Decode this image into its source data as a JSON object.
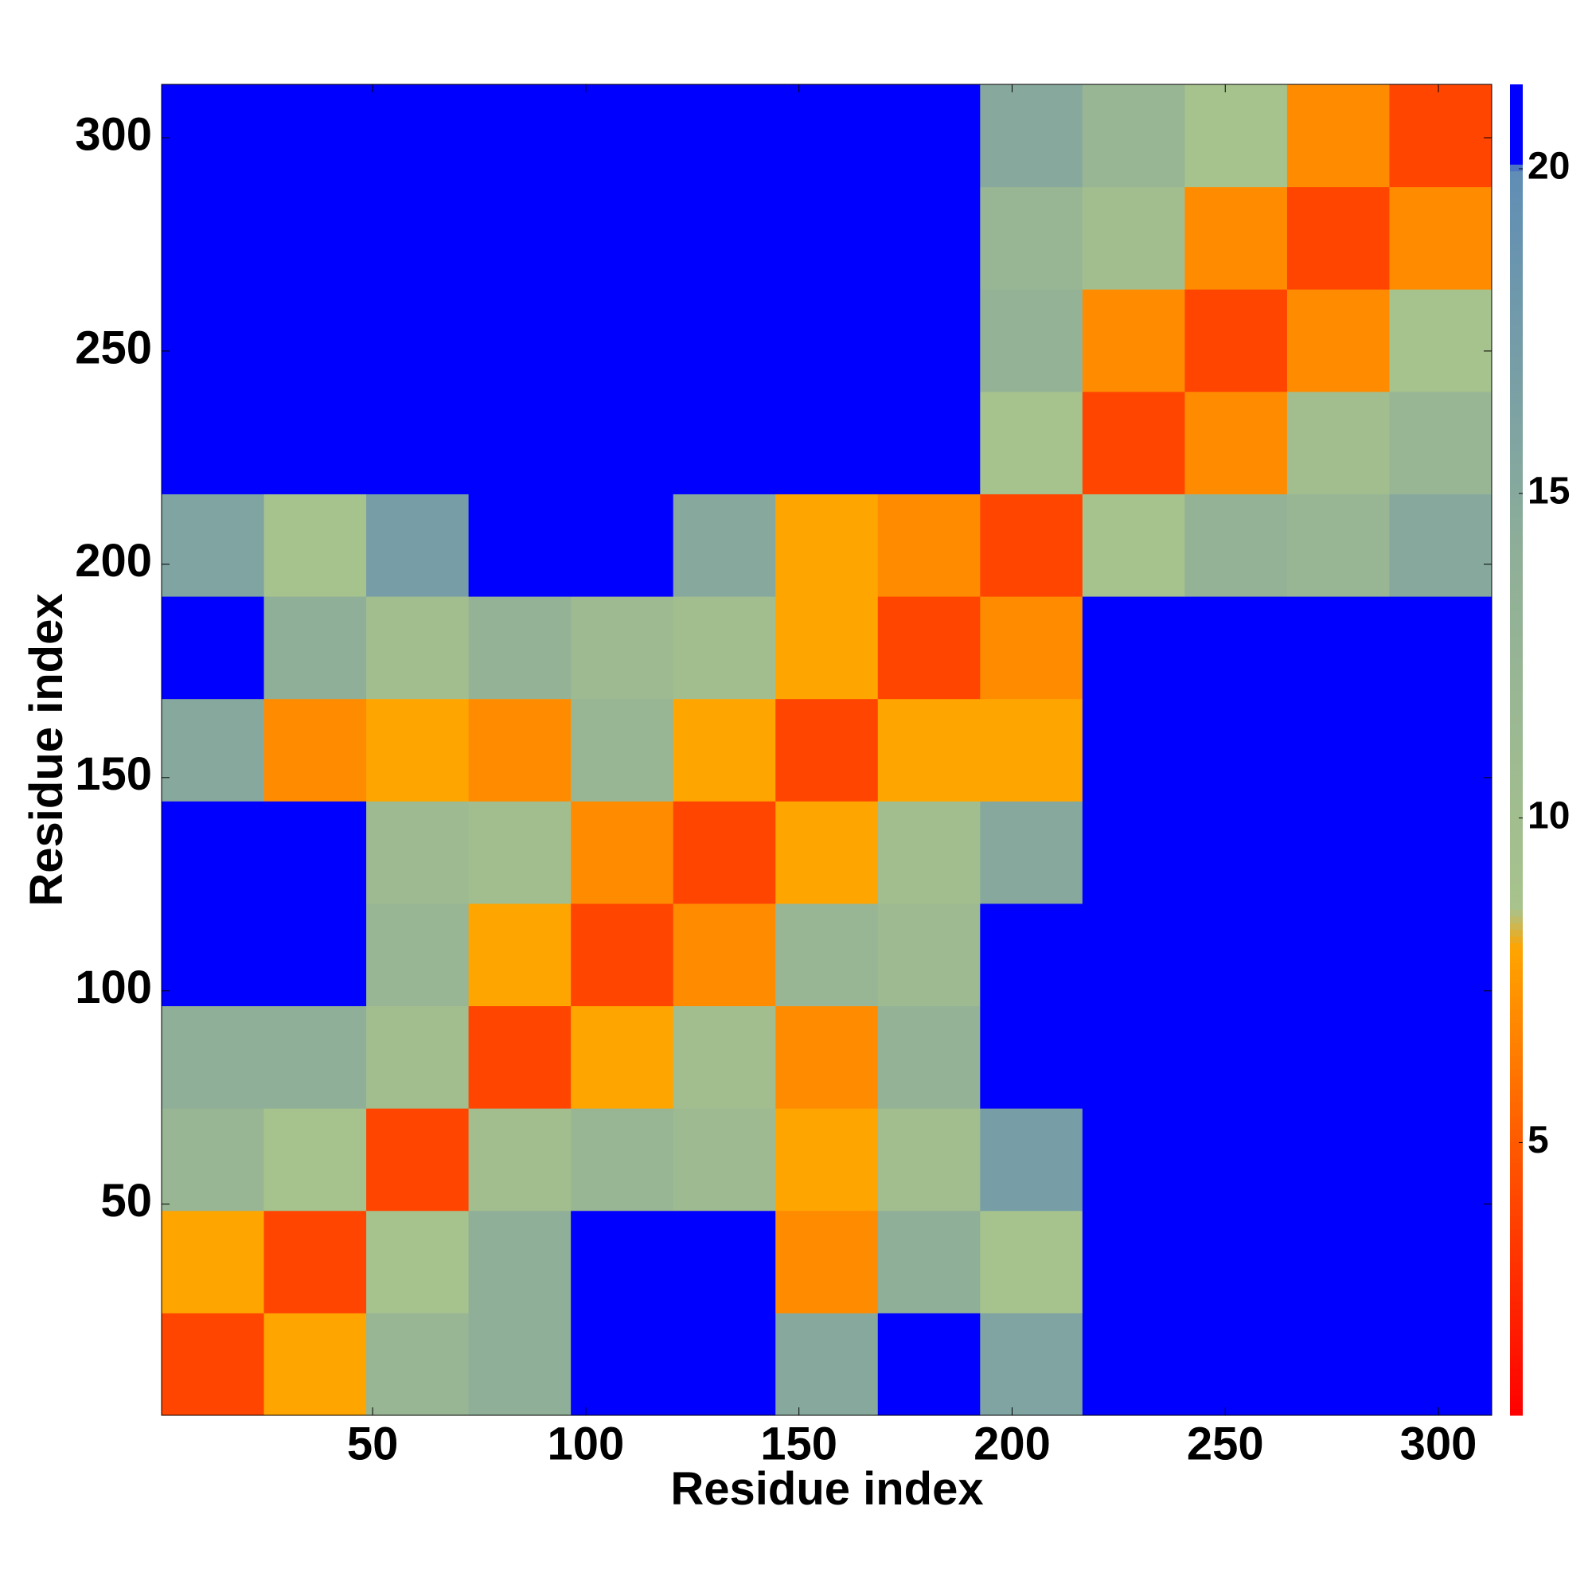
{
  "chart_data": {
    "type": "heatmap",
    "x_label": "Residue index",
    "y_label": "Residue index",
    "bins": [
      0.5,
      24.5,
      48.5,
      72.5,
      96.5,
      120.5,
      144.5,
      168.5,
      192.5,
      216.5,
      240.5,
      264.5,
      288.5,
      312.5
    ],
    "z": [
      [
        4,
        8,
        12,
        14,
        21,
        21,
        15,
        21,
        16,
        21,
        21,
        21,
        21
      ],
      [
        8,
        4,
        9,
        14,
        21,
        21,
        7,
        14,
        9,
        21,
        21,
        21,
        21
      ],
      [
        12,
        9,
        4,
        10,
        12,
        11,
        8,
        10,
        17,
        21,
        21,
        21,
        21
      ],
      [
        14,
        14,
        10,
        4,
        8,
        10,
        7,
        13,
        21,
        21,
        21,
        21,
        21
      ],
      [
        21,
        21,
        12,
        8,
        4,
        7,
        12,
        11,
        21,
        21,
        21,
        21,
        21
      ],
      [
        21,
        21,
        11,
        10,
        7,
        4,
        8,
        10,
        15,
        21,
        21,
        21,
        21
      ],
      [
        15,
        7,
        8,
        7,
        12,
        8,
        4,
        8,
        8,
        21,
        21,
        21,
        21
      ],
      [
        21,
        14,
        10,
        13,
        11,
        10,
        8,
        4,
        7,
        21,
        21,
        21,
        21
      ],
      [
        16,
        9,
        17,
        21,
        21,
        15,
        8,
        7,
        4,
        9,
        13,
        12,
        15
      ],
      [
        21,
        21,
        21,
        21,
        21,
        21,
        21,
        21,
        9,
        4,
        7,
        10,
        12
      ],
      [
        21,
        21,
        21,
        21,
        21,
        21,
        21,
        21,
        13,
        7,
        4,
        7,
        9
      ],
      [
        21,
        21,
        21,
        21,
        21,
        21,
        21,
        21,
        12,
        10,
        7,
        4,
        7
      ],
      [
        21,
        21,
        21,
        21,
        21,
        21,
        21,
        21,
        15,
        12,
        9,
        7,
        4
      ]
    ],
    "xlim": [
      0.5,
      312.5
    ],
    "ylim": [
      0.5,
      312.5
    ],
    "xticks": [
      50,
      100,
      150,
      200,
      250,
      300
    ],
    "yticks": [
      50,
      100,
      150,
      200,
      250,
      300
    ],
    "clim": [
      0.8,
      21.3
    ],
    "cticks": [
      5,
      10,
      15,
      20
    ],
    "colorscale": [
      [
        0.8,
        "#ff0000"
      ],
      [
        5,
        "#ff5a00"
      ],
      [
        8,
        "#ffa500"
      ],
      [
        8.6,
        "#a8c38c"
      ],
      [
        14,
        "#8faf98"
      ],
      [
        20,
        "#5f8db5"
      ],
      [
        20.1,
        "#0000ff"
      ],
      [
        21.3,
        "#0000ff"
      ]
    ]
  }
}
